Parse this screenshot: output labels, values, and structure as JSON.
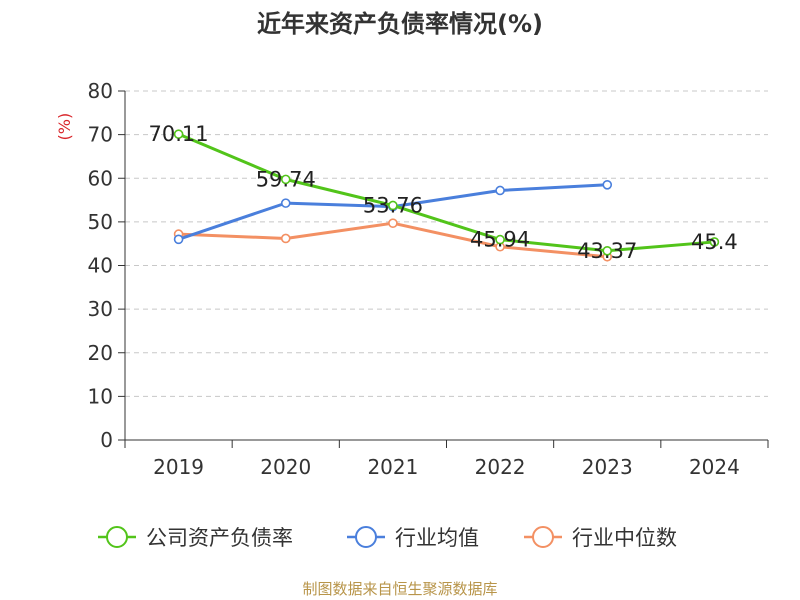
{
  "chart_data": {
    "type": "line",
    "title": "近年来资产负债率情况(%)",
    "ylabel": "(%)",
    "xlabel": "",
    "categories": [
      "2019",
      "2020",
      "2021",
      "2022",
      "2023",
      "2024"
    ],
    "ylim": [
      0,
      80
    ],
    "yticks": [
      "0",
      "10",
      "20",
      "30",
      "40",
      "50",
      "60",
      "70",
      "80"
    ],
    "grid": "horizontal-dashed",
    "legend_position": "bottom",
    "series": [
      {
        "name": "公司资产负债率",
        "color": "#52c41a",
        "values": [
          70.11,
          59.74,
          53.76,
          45.94,
          43.37,
          45.4
        ],
        "labels": [
          "70.11",
          "59.74",
          "53.76",
          "45.94",
          "43.37",
          "45.4"
        ]
      },
      {
        "name": "行业均值",
        "color": "#4a7fdc",
        "values": [
          46.0,
          54.3,
          53.5,
          57.2,
          58.5,
          null
        ]
      },
      {
        "name": "行业中位数",
        "color": "#f39063",
        "values": [
          47.2,
          46.2,
          49.7,
          44.3,
          42.0,
          null
        ]
      }
    ]
  },
  "footer": {
    "source": "制图数据来自恒生聚源数据库"
  }
}
